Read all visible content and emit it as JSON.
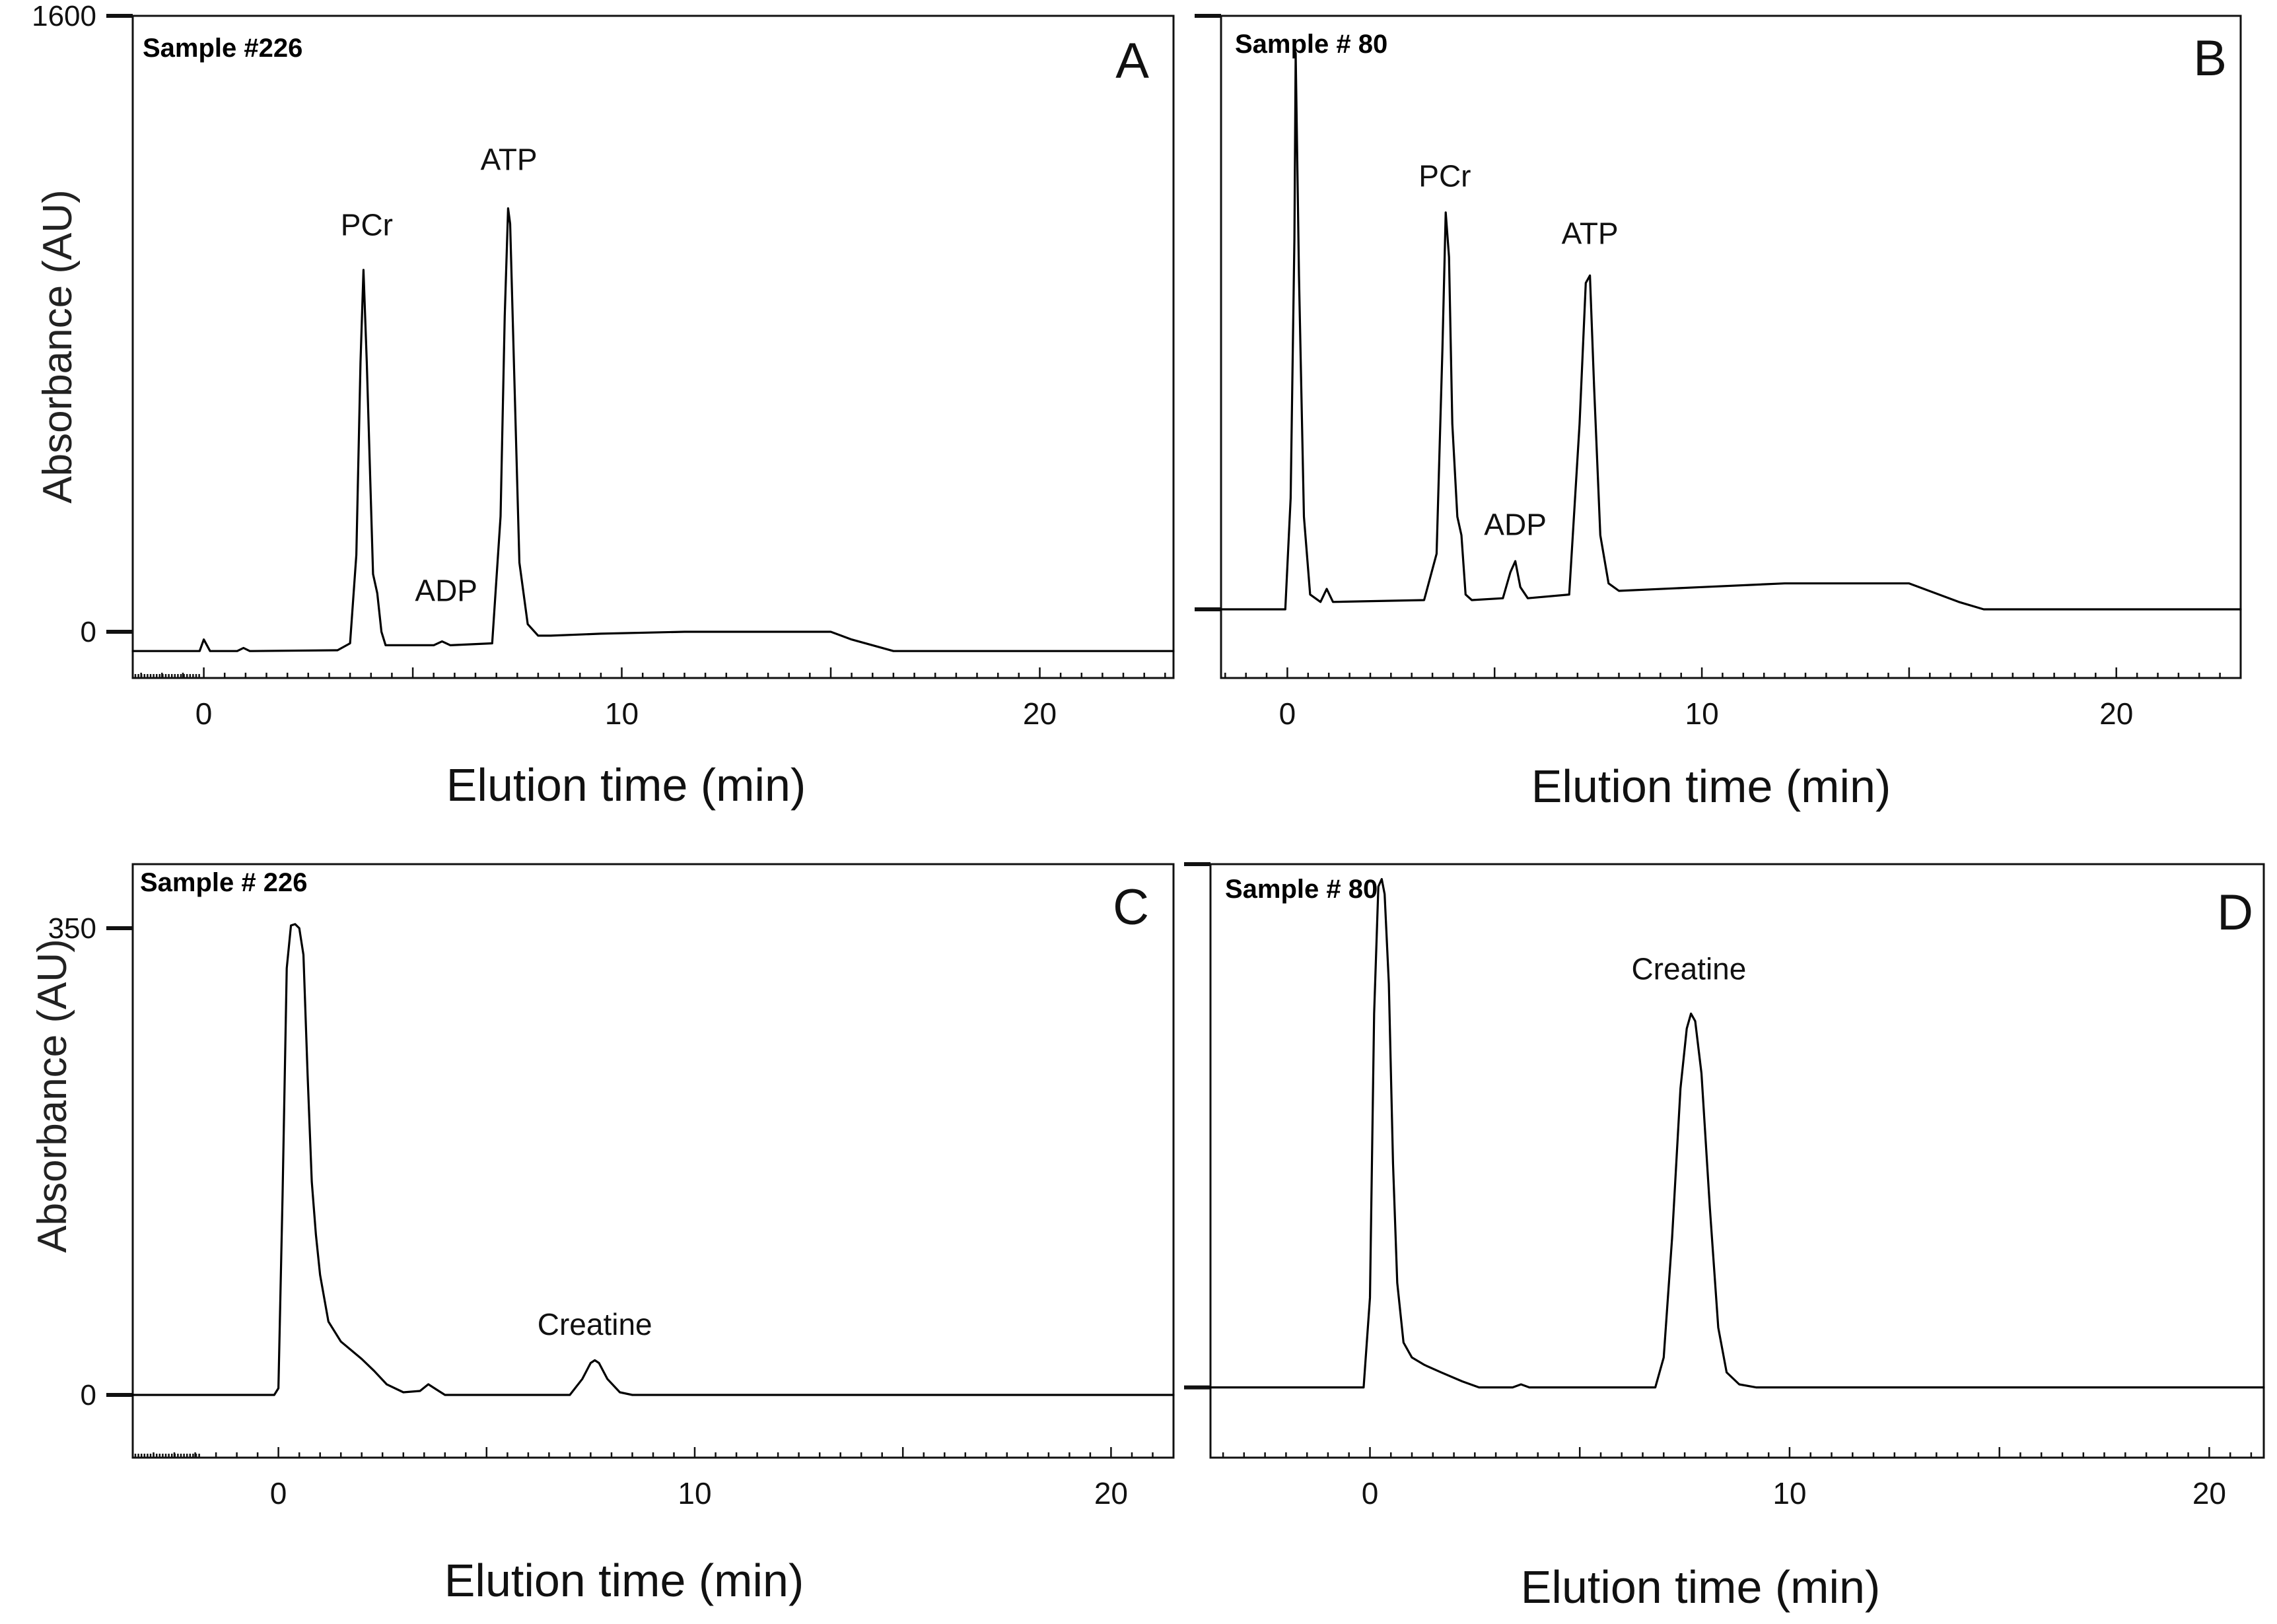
{
  "figure": {
    "panels": [
      {
        "letter": "A",
        "sample": "Sample #226",
        "xlabel": "Elution time (min)",
        "ylabel": "Absorbance (AU)",
        "xlim": [
          -1.7,
          23.2
        ],
        "ylim": [
          -120,
          1600
        ],
        "xticks": [
          0,
          10,
          20
        ],
        "yticks": [
          {
            "value": 0,
            "label": "0"
          },
          {
            "value": 1600,
            "label": "1600"
          }
        ],
        "baseline_ticks": true,
        "peak_labels": [
          {
            "text": "PCr",
            "x": 3.9,
            "y": 1030
          },
          {
            "text": "ADP",
            "x": 5.8,
            "y": 80
          },
          {
            "text": "ATP",
            "x": 7.3,
            "y": 1200
          }
        ],
        "trace": {
          "type": "line",
          "x": [
            -1.7,
            -0.1,
            0.0,
            0.15,
            0.8,
            0.95,
            1.1,
            3.2,
            3.5,
            3.65,
            3.75,
            3.82,
            3.9,
            4.05,
            4.15,
            4.25,
            4.35,
            5.5,
            5.7,
            5.9,
            6.9,
            7.1,
            7.2,
            7.28,
            7.33,
            7.42,
            7.55,
            7.75,
            8.0,
            8.3,
            9.5,
            11.5,
            15.0,
            15.5,
            16.5,
            17.0,
            23.2
          ],
          "y": [
            -50,
            -50,
            -20,
            -50,
            -50,
            -42,
            -50,
            -48,
            -30,
            200,
            700,
            940,
            700,
            150,
            100,
            0,
            -35,
            -35,
            -25,
            -35,
            -30,
            300,
            820,
            1100,
            1060,
            700,
            180,
            20,
            -10,
            -10,
            -5,
            0,
            0,
            -20,
            -50,
            -50,
            -50
          ]
        }
      },
      {
        "letter": "B",
        "sample": "Sample # 80",
        "xlabel": "Elution time (min)",
        "ylabel": "",
        "xlim": [
          -1.6,
          23.0
        ],
        "ylim": [
          -185,
          1600
        ],
        "xticks": [
          0,
          10,
          20
        ],
        "yticks": [
          {
            "value": 0,
            "label": ""
          },
          {
            "value": 1600,
            "label": ""
          }
        ],
        "baseline_ticks": false,
        "peak_labels": [
          {
            "text": "PCr",
            "x": 3.8,
            "y": 1140
          },
          {
            "text": "ADP",
            "x": 5.5,
            "y": 200
          },
          {
            "text": "ATP",
            "x": 7.3,
            "y": 985
          }
        ],
        "trace": {
          "type": "line",
          "x": [
            -1.6,
            -0.05,
            0.08,
            0.17,
            0.2,
            0.28,
            0.4,
            0.55,
            0.8,
            0.95,
            1.1,
            3.3,
            3.6,
            3.74,
            3.82,
            3.9,
            3.98,
            4.1,
            4.2,
            4.3,
            4.45,
            5.2,
            5.38,
            5.5,
            5.62,
            5.8,
            6.8,
            7.05,
            7.2,
            7.3,
            7.4,
            7.55,
            7.75,
            8.0,
            10.0,
            12.0,
            15.0,
            16.2,
            16.8,
            23.0
          ],
          "y": [
            0,
            0,
            300,
            1000,
            1500,
            900,
            250,
            40,
            20,
            55,
            20,
            25,
            150,
            700,
            1070,
            950,
            500,
            250,
            200,
            40,
            25,
            30,
            100,
            130,
            60,
            30,
            40,
            500,
            880,
            900,
            600,
            200,
            70,
            50,
            60,
            70,
            70,
            20,
            0,
            0
          ]
        }
      },
      {
        "letter": "C",
        "sample": "Sample # 226",
        "xlabel": "Elution time (min)",
        "ylabel": "Absorbance (AU)",
        "xlim": [
          -3.5,
          21.5
        ],
        "ylim": [
          -47,
          398
        ],
        "xticks": [
          0,
          10,
          20
        ],
        "yticks": [
          {
            "value": 0,
            "label": "0"
          },
          {
            "value": 350,
            "label": "350"
          }
        ],
        "baseline_ticks": true,
        "peak_labels": [
          {
            "text": "Creatine",
            "x": 7.6,
            "y": 45
          }
        ],
        "trace": {
          "type": "line",
          "x": [
            -3.5,
            -0.1,
            0.0,
            0.1,
            0.2,
            0.3,
            0.4,
            0.5,
            0.6,
            0.7,
            0.8,
            0.9,
            1.0,
            1.2,
            1.5,
            2.0,
            2.3,
            2.6,
            3.0,
            3.4,
            3.6,
            3.8,
            4.0,
            7.0,
            7.3,
            7.5,
            7.6,
            7.7,
            7.9,
            8.2,
            8.5,
            21.5
          ],
          "y": [
            0,
            0,
            5,
            150,
            320,
            352,
            353,
            350,
            330,
            240,
            160,
            120,
            90,
            55,
            40,
            27,
            18,
            8,
            2,
            3,
            8,
            4,
            0,
            0,
            12,
            24,
            26,
            24,
            12,
            2,
            0,
            0
          ]
        }
      },
      {
        "letter": "D",
        "sample": "Sample # 80",
        "xlabel": "Elution time (min)",
        "ylabel": "",
        "xlim": [
          -3.8,
          21.3
        ],
        "ylim": [
          -47,
          350
        ],
        "xticks": [
          0,
          10,
          20
        ],
        "yticks": [
          {
            "value": 0,
            "label": ""
          },
          {
            "value": 350,
            "label": ""
          }
        ],
        "baseline_ticks": false,
        "peak_labels": [
          {
            "text": "Creatine",
            "x": 7.6,
            "y": 273
          }
        ],
        "trace": {
          "type": "line",
          "x": [
            -3.8,
            -0.15,
            0.0,
            0.1,
            0.2,
            0.28,
            0.35,
            0.45,
            0.55,
            0.65,
            0.8,
            1.0,
            1.3,
            1.7,
            2.2,
            2.6,
            3.0,
            3.4,
            3.6,
            3.8,
            6.8,
            7.0,
            7.2,
            7.4,
            7.55,
            7.65,
            7.75,
            7.9,
            8.1,
            8.3,
            8.5,
            8.8,
            9.2,
            21.3
          ],
          "y": [
            0,
            0,
            60,
            250,
            335,
            340,
            330,
            270,
            150,
            70,
            30,
            20,
            15,
            10,
            4,
            0,
            0,
            0,
            2,
            0,
            0,
            20,
            100,
            200,
            240,
            250,
            245,
            210,
            120,
            40,
            10,
            2,
            0,
            0
          ]
        }
      }
    ]
  }
}
